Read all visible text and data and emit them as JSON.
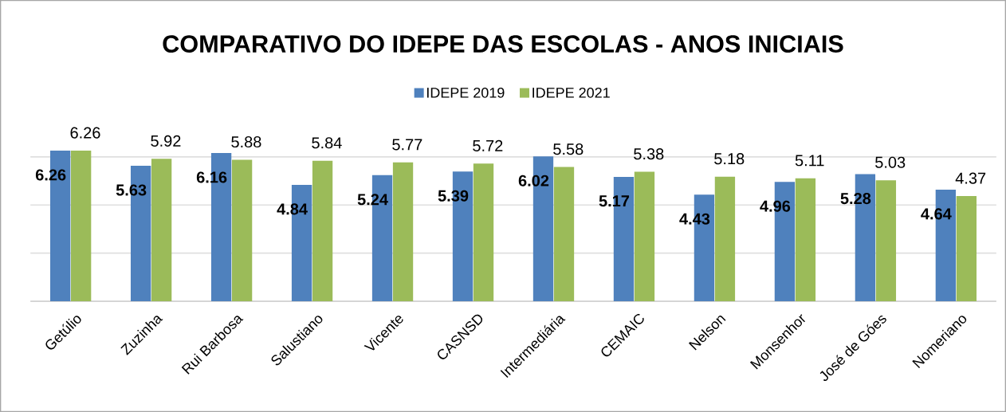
{
  "chart_data": {
    "type": "bar",
    "title": "COMPARATIVO DO IDEPE DAS ESCOLAS - ANOS INICIAIS",
    "categories": [
      "Getúlio",
      "Zuzinha",
      "Rui Barbosa",
      "Salustiano",
      "Vicente",
      "CASNSD",
      "Intermediária",
      "CEMAIC",
      "Nelson",
      "Monsenhor",
      "José de Góes",
      "Nomeriano"
    ],
    "series": [
      {
        "name": "IDEPE 2019",
        "color": "#4f81bd",
        "values": [
          6.26,
          5.63,
          6.16,
          4.84,
          5.24,
          5.39,
          6.02,
          5.17,
          4.43,
          4.96,
          5.28,
          4.64
        ]
      },
      {
        "name": "IDEPE 2021",
        "color": "#9bbb59",
        "values": [
          6.26,
          5.92,
          5.88,
          5.84,
          5.77,
          5.72,
          5.58,
          5.38,
          5.18,
          5.11,
          5.03,
          4.37
        ]
      }
    ],
    "tick_labels": "x",
    "grid": "y",
    "legend": "top",
    "data_labels": true
  }
}
